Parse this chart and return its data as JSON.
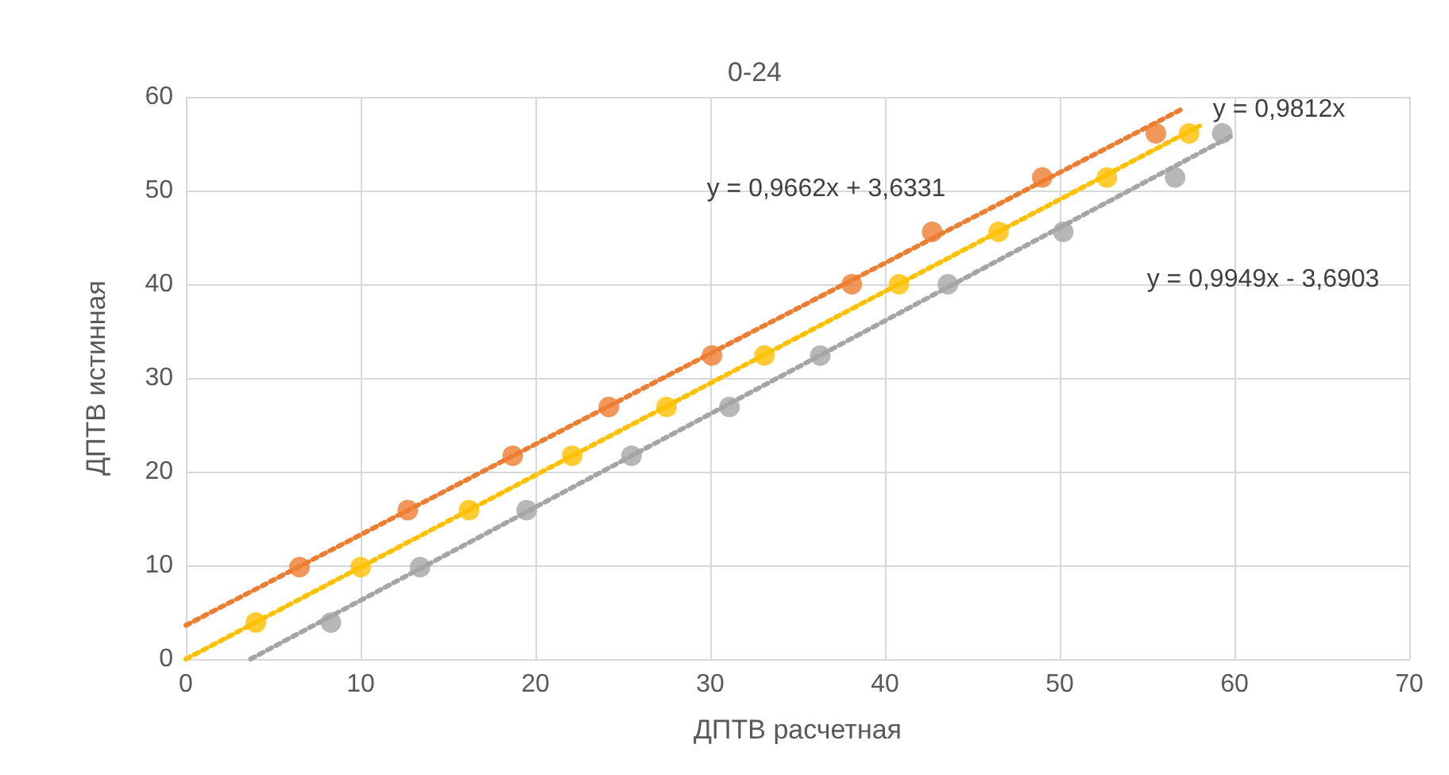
{
  "chart_data": {
    "type": "scatter",
    "title": "0-24",
    "xlabel": "ДПТВ расчетная",
    "ylabel": "ДПТВ истинная",
    "xlim": [
      0,
      70
    ],
    "xticks": [
      0,
      10,
      20,
      30,
      40,
      50,
      60,
      70
    ],
    "ylim": [
      0,
      60
    ],
    "yticks": [
      0,
      10,
      20,
      30,
      40,
      50,
      60
    ],
    "grid": true,
    "marker": "circle",
    "series": [
      {
        "color": "#ed7d31",
        "x": [
          6.5,
          12.7,
          18.7,
          24.2,
          30.1,
          38.1,
          42.7,
          49,
          55.5
        ],
        "values": [
          9.8,
          15.9,
          21.7,
          26.9,
          32.4,
          40,
          45.6,
          51.4,
          56.1
        ]
      },
      {
        "color": "#ffc000",
        "x": [
          4,
          10,
          16.2,
          22.1,
          27.5,
          33.1,
          40.8,
          46.5,
          52.7,
          57.4
        ],
        "values": [
          3.9,
          9.8,
          15.9,
          21.7,
          26.9,
          32.4,
          40,
          45.6,
          51.4,
          56.1
        ]
      },
      {
        "color": "#a5a5a5",
        "x": [
          8.3,
          13.4,
          19.5,
          25.5,
          31.1,
          36.3,
          43.6,
          50.2,
          56.6,
          59.3
        ],
        "values": [
          3.9,
          9.8,
          15.9,
          21.7,
          26.9,
          32.4,
          40,
          45.6,
          51.4,
          56.1
        ]
      },
      {
        "type": "line",
        "color": "#ed7d31",
        "marker": "none",
        "line_style": "dotted",
        "x": [
          0,
          57
        ],
        "values": [
          3.6,
          58.7
        ]
      },
      {
        "type": "line",
        "color": "#ffc000",
        "marker": "none",
        "line_style": "dotted",
        "x": [
          0,
          58
        ],
        "values": [
          0,
          56.9
        ]
      },
      {
        "type": "line",
        "color": "#a5a5a5",
        "marker": "none",
        "line_style": "dotted",
        "x": [
          3.7,
          60
        ],
        "values": [
          0,
          56
        ]
      }
    ],
    "annotations": [
      "y = 0,9812x",
      "y = 0,9662x + 3,6331",
      "y = 0,9949x - 3,6903"
    ]
  }
}
